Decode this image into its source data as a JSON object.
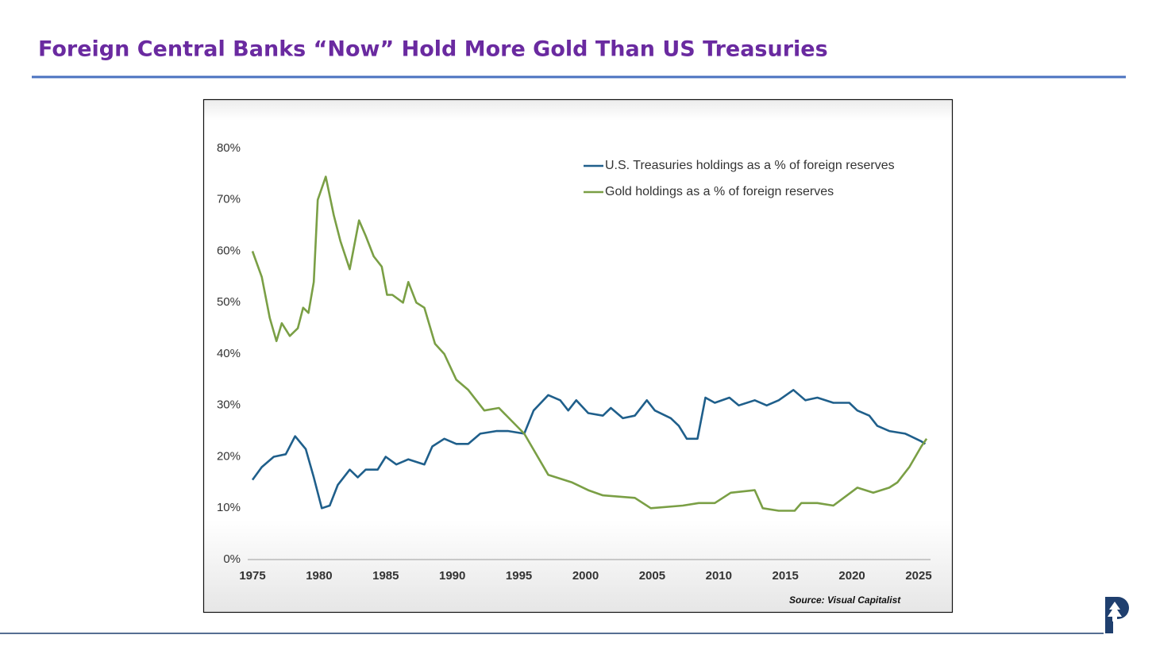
{
  "slide_title": "Foreign Central Banks “Now” Hold More Gold Than US Treasuries",
  "source": "Source: Visual Capitalist",
  "chart_data": {
    "type": "line",
    "xlim": [
      1975,
      2025
    ],
    "xticks": [
      1975,
      1980,
      1985,
      1990,
      1995,
      2000,
      2005,
      2010,
      2015,
      2020,
      2025
    ],
    "ylim": [
      0,
      80
    ],
    "yticks": [
      {
        "value": 0,
        "label": "0%"
      },
      {
        "value": 10,
        "label": "10%"
      },
      {
        "value": 20,
        "label": "20%"
      },
      {
        "value": 30,
        "label": "30%"
      },
      {
        "value": 40,
        "label": "40%"
      },
      {
        "value": 50,
        "label": "50%"
      },
      {
        "value": 60,
        "label": "60%"
      },
      {
        "value": 70,
        "label": "70%"
      },
      {
        "value": 80,
        "label": "80%"
      }
    ],
    "grid": false,
    "legend": "top-right",
    "series": [
      {
        "name": "U.S. Treasuries holdings as a % of foreign reserves",
        "color": "#1f5f8b",
        "x": [
          1975,
          1975.7,
          1976.6,
          1977.5,
          1978.2,
          1979,
          1979.6,
          1980.2,
          1980.8,
          1981.4,
          1982.3,
          1982.9,
          1983.5,
          1984.4,
          1985,
          1985.8,
          1986.7,
          1987.9,
          1988.5,
          1989.4,
          1990.3,
          1991.2,
          1992.1,
          1993.3,
          1994.2,
          1995.4,
          1996.1,
          1997.2,
          1998.1,
          1998.7,
          1999.3,
          2000.2,
          2001.3,
          2001.9,
          2002.8,
          2003.7,
          2004.6,
          2005.2,
          2006.4,
          2007,
          2007.6,
          2008.4,
          2009,
          2009.7,
          2010.8,
          2011.5,
          2012.7,
          2013.6,
          2014.5,
          2015.6,
          2016.5,
          2017.4,
          2018.6,
          2019.8,
          2020.4,
          2021.3,
          2021.9,
          2022.8,
          2024,
          2025.2,
          2025.5
        ],
        "values": [
          15.5,
          18,
          20,
          20.5,
          24,
          21.5,
          16,
          10,
          10.5,
          14.5,
          17.5,
          16,
          17.5,
          17.5,
          20,
          18.5,
          19.5,
          18.5,
          22,
          23.5,
          22.5,
          22.5,
          24.5,
          25,
          25,
          24.5,
          29,
          32,
          31,
          29,
          31,
          28.5,
          28,
          29.5,
          27.5,
          28,
          31,
          29,
          27.5,
          26,
          23.5,
          23.5,
          31.5,
          30.5,
          31.5,
          30,
          31,
          30,
          31,
          33,
          31,
          31.5,
          30.5,
          30.5,
          29,
          28,
          26,
          25,
          24.5,
          23,
          22.5
        ]
      },
      {
        "name": "Gold holdings as a % of foreign reserves",
        "color": "#7a9f45",
        "x": [
          1975,
          1975.7,
          1976.3,
          1976.8,
          1977.2,
          1977.8,
          1978.4,
          1978.8,
          1979.2,
          1979.6,
          1979.9,
          1980.5,
          1981.1,
          1981.6,
          1982.3,
          1983,
          1983.5,
          1984.1,
          1984.7,
          1985.1,
          1985.5,
          1986.3,
          1986.7,
          1987.3,
          1987.9,
          1988.7,
          1989.4,
          1990.3,
          1991.2,
          1992.4,
          1993.5,
          1995.4,
          1997.2,
          1999,
          2000.2,
          2001.3,
          2003.7,
          2004.9,
          2007.3,
          2008.5,
          2009.7,
          2010.9,
          2012.7,
          2013.3,
          2014.5,
          2015.7,
          2016.2,
          2017.4,
          2018.6,
          2020.4,
          2021.6,
          2022.8,
          2023.4,
          2024.3,
          2025.2,
          2025.6
        ],
        "values": [
          60,
          55,
          47,
          42.5,
          46,
          43.5,
          45,
          49,
          48,
          54,
          70,
          74.5,
          67,
          62,
          56.5,
          66,
          63,
          59,
          57,
          51.5,
          51.5,
          50,
          54,
          50,
          49,
          42,
          40,
          35,
          33,
          29,
          29.5,
          24.5,
          16.5,
          15,
          13.5,
          12.5,
          12,
          10,
          10.5,
          11,
          11,
          13,
          13.5,
          10,
          9.5,
          9.5,
          11,
          11,
          10.5,
          14,
          13,
          14,
          15,
          18,
          22,
          23.5
        ]
      }
    ]
  }
}
